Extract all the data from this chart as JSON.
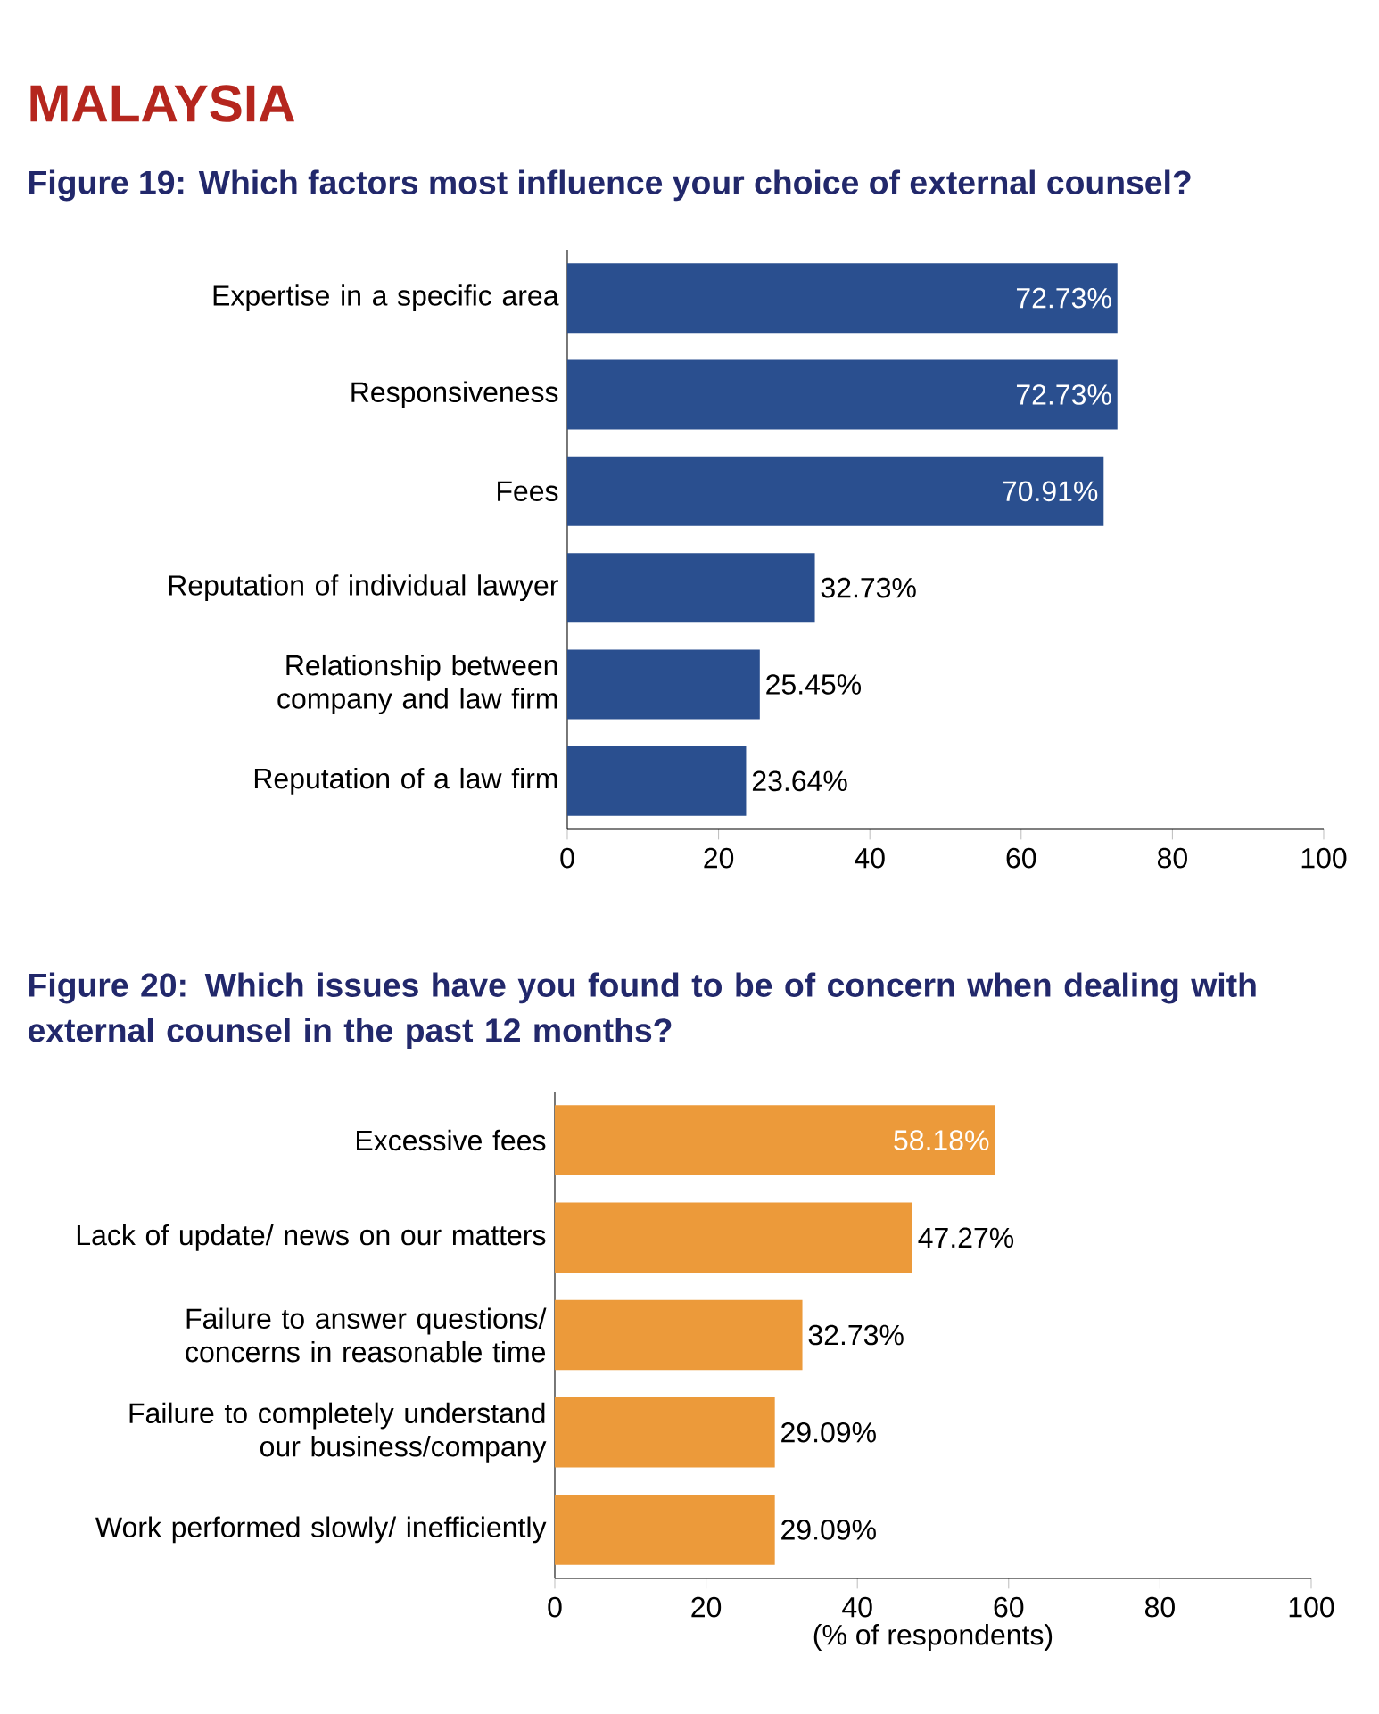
{
  "chart_data": [
    {
      "type": "bar",
      "orientation": "horizontal",
      "title": "MALAYSIA",
      "subtitle": "Figure 19: Which factors most influence your choice of external counsel?",
      "categories": [
        "Expertise in a specific area",
        "Responsiveness",
        "Fees",
        "Reputation of individual lawyer",
        "Relationship between company and law firm",
        "Reputation of a law firm"
      ],
      "values": [
        72.73,
        72.73,
        70.91,
        32.73,
        25.45,
        23.64
      ],
      "value_labels": [
        "72.73%",
        "72.73%",
        "70.91%",
        "32.73%",
        "25.45%",
        "23.64%"
      ],
      "color": "#2a4f8f",
      "xlim": [
        0,
        100
      ],
      "xticks": [
        0,
        20,
        40,
        60,
        80,
        100
      ]
    },
    {
      "type": "bar",
      "orientation": "horizontal",
      "title": "Figure 20: Which issues have you found to be of concern when dealing with external counsel in the past 12 months?",
      "categories": [
        "Excessive fees",
        "Lack of update/ news on our matters",
        "Failure to answer questions/ concerns in reasonable time",
        "Failure to completely understand our business/company",
        "Work performed slowly/ inefficiently"
      ],
      "values": [
        58.18,
        47.27,
        32.73,
        29.09,
        29.09
      ],
      "value_labels": [
        "58.18%",
        "47.27%",
        "32.73%",
        "29.09%",
        "29.09%"
      ],
      "color": "#ec9a3a",
      "xlim": [
        0,
        100
      ],
      "xticks": [
        0,
        20,
        40,
        60,
        80,
        100
      ],
      "xlabel": "(% of respondents)"
    }
  ]
}
